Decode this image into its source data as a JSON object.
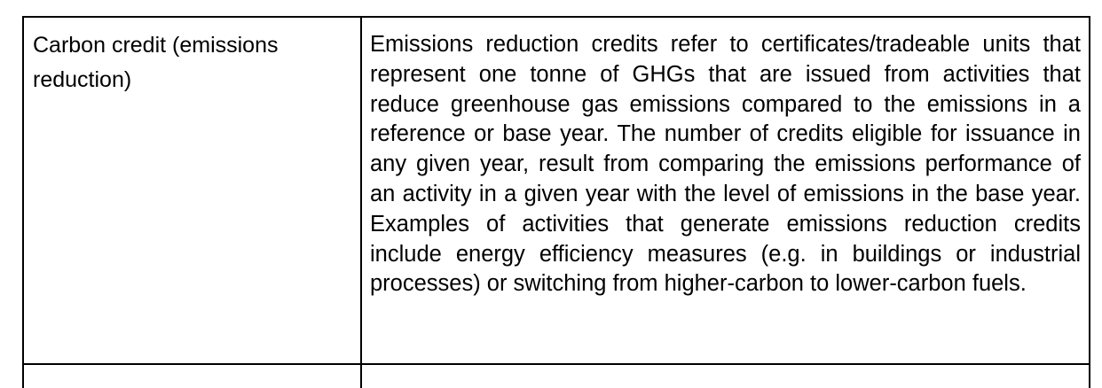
{
  "table": {
    "rows": [
      {
        "term": "Carbon credit (emissions reduction)",
        "definition": "Emissions reduction credits refer to certificates/tradeable units that represent one tonne of GHGs that are issued from activities that reduce greenhouse gas emissions compared to the emissions in a reference or base year. The number of credits eligible for issuance in any given year, result from comparing the emissions performance of an activity in a given year with the level of emissions in the base year. Examples of activities that generate emissions reduction credits include energy efficiency measures (e.g. in  buildings or industrial processes) or switching from higher-carbon to lower-carbon fuels."
      }
    ]
  }
}
